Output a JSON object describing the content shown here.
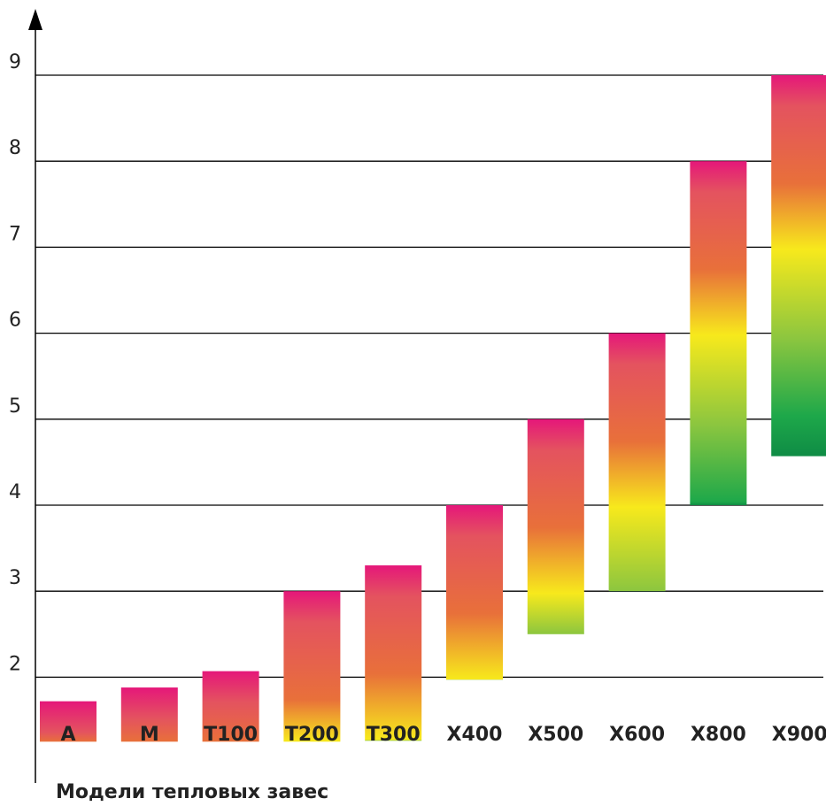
{
  "chart_data": {
    "type": "bar",
    "xlabel": "Модели тепловых завес",
    "ylabel": "",
    "yticks": [
      "2",
      "3",
      "4",
      "5",
      "6",
      "7",
      "8",
      "9"
    ],
    "ylim": [
      1.0,
      9.6
    ],
    "grid": true,
    "categories": [
      "A",
      "M",
      "T100",
      "T200",
      "T300",
      "X400",
      "X500",
      "X600",
      "X800",
      "X900"
    ],
    "ranges": [
      {
        "low": 1.25,
        "high": 1.72
      },
      {
        "low": 1.25,
        "high": 1.88
      },
      {
        "low": 1.25,
        "high": 2.07
      },
      {
        "low": 1.25,
        "high": 3.0
      },
      {
        "low": 1.26,
        "high": 3.3
      },
      {
        "low": 1.97,
        "high": 4.0
      },
      {
        "low": 2.5,
        "high": 5.0
      },
      {
        "low": 3.0,
        "high": 6.0
      },
      {
        "low": 4.0,
        "high": 8.0
      },
      {
        "low": 4.57,
        "high": 9.0
      }
    ],
    "colors": [
      "#e5177a",
      "#e8703a",
      "#f7e91c",
      "#8cc63f",
      "#1ea84a",
      "#0f8c45"
    ]
  }
}
